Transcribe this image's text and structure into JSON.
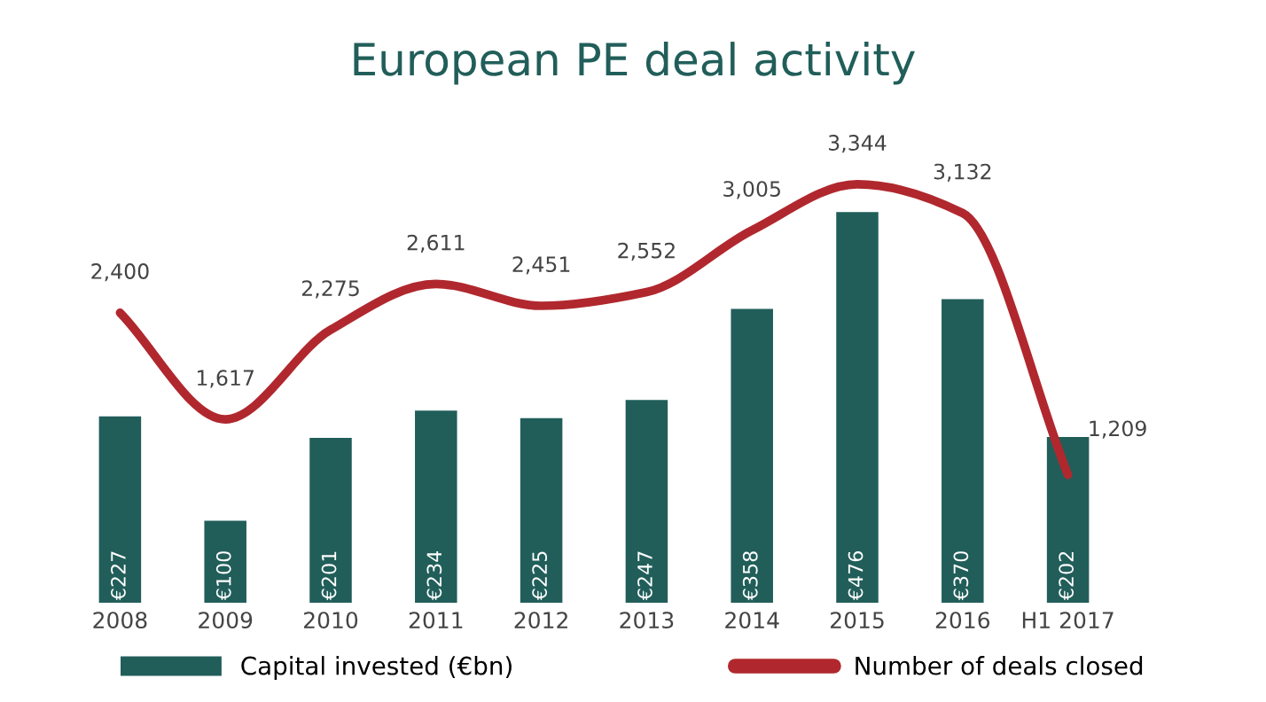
{
  "chart_data": {
    "type": "bar",
    "title": "European PE deal activity",
    "categories": [
      "2008",
      "2009",
      "2010",
      "2011",
      "2012",
      "2013",
      "2014",
      "2015",
      "2016",
      "H1 2017"
    ],
    "series": [
      {
        "name": "Capital invested (€bn)",
        "color": "#215e5a",
        "values": [
          227,
          100,
          201,
          234,
          225,
          247,
          358,
          476,
          370,
          202
        ],
        "value_labels": [
          "€227",
          "€100",
          "€201",
          "€234",
          "€225",
          "€247",
          "€358",
          "€476",
          "€370",
          "€202"
        ]
      },
      {
        "name": "Number of deals closed",
        "type": "line",
        "axis": "y2",
        "color": "#b0282e",
        "values": [
          2400,
          1617,
          2275,
          2611,
          2451,
          2552,
          3005,
          3344,
          3132,
          1209
        ],
        "value_labels": [
          "2,400",
          "1,617",
          "2,275",
          "2,611",
          "2,451",
          "2,552",
          "3,005",
          "3,344",
          "3,132",
          "1,209"
        ]
      }
    ],
    "tick_labels": "x",
    "grid": false,
    "legend": "bottom",
    "marker": "none",
    "line_style": "solid"
  }
}
